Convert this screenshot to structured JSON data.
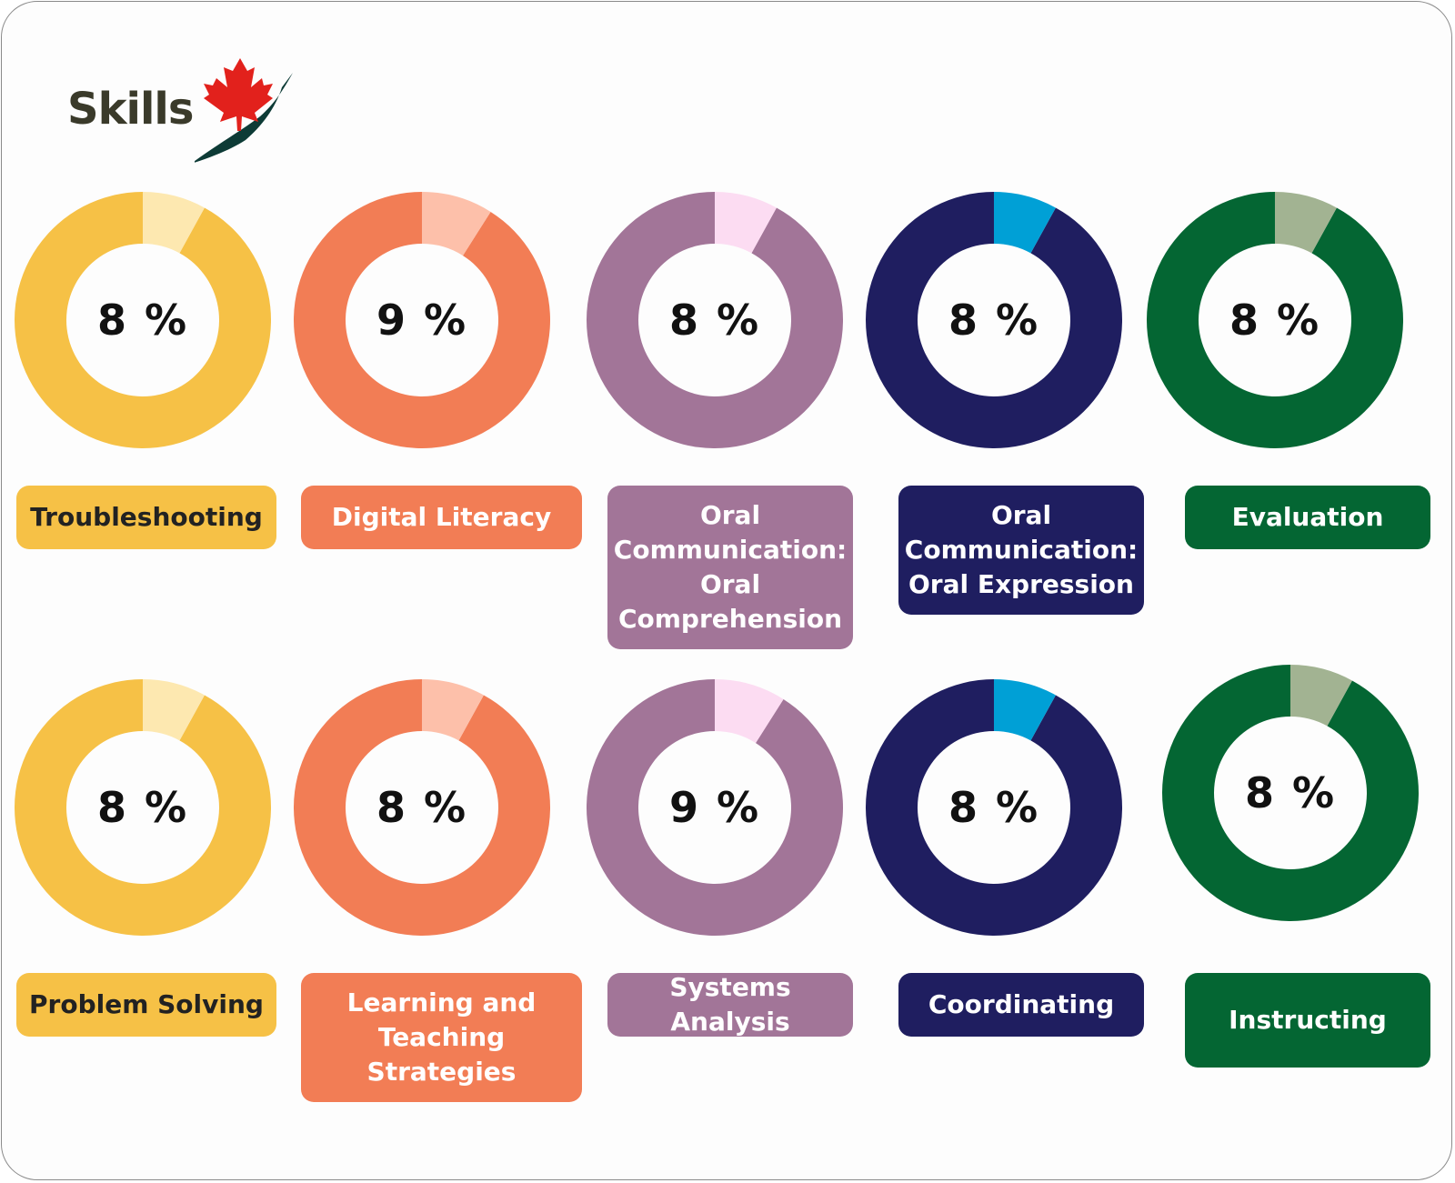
{
  "brand": {
    "title": "Skills",
    "colors": {
      "leaf": "#e2211c",
      "wing": "#0d3b36"
    }
  },
  "chart_data": {
    "type": "pie",
    "items": [
      {
        "label": "Troubleshooting",
        "value": 8,
        "display": "8 %",
        "color": "#f6c146",
        "highlight": "#fde8b0",
        "text_color": "#222222"
      },
      {
        "label": "Digital Literacy",
        "value": 9,
        "display": "9 %",
        "color": "#f27d55",
        "highlight": "#fdc0aa",
        "text_color": "#ffffff"
      },
      {
        "label": "Oral Communication: Oral Comprehension",
        "value": 8,
        "display": "8 %",
        "color": "#a27598",
        "highlight": "#fcdcf2",
        "text_color": "#ffffff"
      },
      {
        "label": "Oral Communication: Oral Expression",
        "value": 8,
        "display": "8 %",
        "color": "#1f1e60",
        "highlight": "#00a0d6",
        "text_color": "#ffffff"
      },
      {
        "label": "Evaluation",
        "value": 8,
        "display": "8 %",
        "color": "#046633",
        "highlight": "#a2b392",
        "text_color": "#ffffff"
      },
      {
        "label": "Problem Solving",
        "value": 8,
        "display": "8 %",
        "color": "#f6c146",
        "highlight": "#fde8b0",
        "text_color": "#222222"
      },
      {
        "label": "Learning and Teaching Strategies",
        "value": 8,
        "display": "8 %",
        "color": "#f27d55",
        "highlight": "#fdc0aa",
        "text_color": "#ffffff"
      },
      {
        "label": "Systems Analysis",
        "value": 9,
        "display": "9 %",
        "color": "#a27598",
        "highlight": "#fcdcf2",
        "text_color": "#ffffff"
      },
      {
        "label": "Coordinating",
        "value": 8,
        "display": "8 %",
        "color": "#1f1e60",
        "highlight": "#00a0d6",
        "text_color": "#ffffff"
      },
      {
        "label": "Instructing",
        "value": 8,
        "display": "8 %",
        "color": "#046633",
        "highlight": "#a2b392",
        "text_color": "#ffffff"
      }
    ]
  }
}
